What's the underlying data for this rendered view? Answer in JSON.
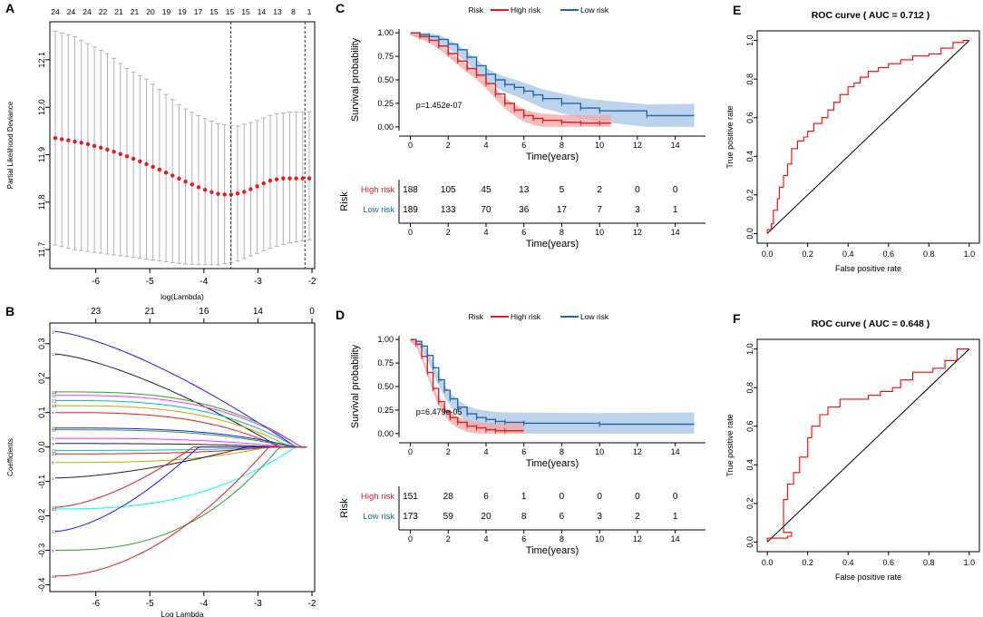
{
  "panels": {
    "A": {
      "letter": "A",
      "top_label": "",
      "xlabel": "log(Lambda)",
      "ylabel": "Partial Likelihood Deviance",
      "top_ticks": [
        "24",
        "24",
        "24",
        "22",
        "21",
        "21",
        "20",
        "19",
        "19",
        "17",
        "15",
        "15",
        "15",
        "14",
        "13",
        "8",
        "1"
      ],
      "xticks": [
        -6,
        -5,
        -4,
        -3,
        -2
      ],
      "yticks": [
        11.7,
        11.8,
        11.9,
        12.0,
        12.1
      ],
      "xlim": [
        -6.85,
        -1.95
      ],
      "ylim": [
        11.66,
        12.18
      ],
      "cv_mean": [
        11.935,
        11.93,
        11.925,
        11.918,
        11.91,
        11.9,
        11.89,
        11.878,
        11.866,
        11.853,
        11.84,
        11.828,
        11.818,
        11.815,
        11.82,
        11.832,
        11.845,
        11.85,
        11.85,
        11.85
      ],
      "cv_x_range": [
        -6.75,
        -2.05
      ],
      "upper": [
        12.16,
        12.15,
        12.13,
        12.11,
        12.08,
        12.06,
        12.03,
        12.0,
        11.98,
        11.965,
        11.96,
        11.97,
        11.985,
        11.99,
        11.99
      ],
      "lower": [
        11.71,
        11.7,
        11.695,
        11.69,
        11.685,
        11.68,
        11.675,
        11.67,
        11.668,
        11.668,
        11.675,
        11.69,
        11.705,
        11.715,
        11.72
      ],
      "lambda_min": -3.5,
      "lambda_1se": -2.13,
      "band_color": "#b3b3b3",
      "point_color": "#e41a1c"
    },
    "B": {
      "letter": "B",
      "xlabel": "Log Lambda",
      "ylabel": "Coefficients",
      "top_ticks": [
        "23",
        "21",
        "16",
        "14",
        "0"
      ],
      "top_tick_x": [
        -6,
        -5,
        -4,
        -3,
        -2
      ],
      "xticks": [
        -6,
        -5,
        -4,
        -3,
        -2
      ],
      "yticks": [
        -0.4,
        -0.3,
        -0.2,
        -0.1,
        0.0,
        0.1,
        0.2,
        0.3
      ],
      "xlim": [
        -6.85,
        -1.95
      ],
      "ylim": [
        -0.42,
        0.36
      ],
      "paths": [
        {
          "start": 0.335,
          "end_x": -2.3,
          "color": "#1a1aff",
          "shape": "drop_early"
        },
        {
          "start": 0.27,
          "end_x": -2.6,
          "color": "#222222",
          "shape": "drop_early"
        },
        {
          "start": 0.16,
          "end_x": -2.2,
          "color": "#2ca02c",
          "shape": "flat"
        },
        {
          "start": 0.15,
          "end_x": -2.2,
          "color": "#ff33ff",
          "shape": "flat"
        },
        {
          "start": 0.135,
          "end_x": -2.3,
          "color": "#00bfbf",
          "shape": "flat"
        },
        {
          "start": 0.12,
          "end_x": -2.4,
          "color": "#b3b300",
          "shape": "flat"
        },
        {
          "start": 0.1,
          "end_x": -2.6,
          "color": "#e41a1c",
          "shape": "flat"
        },
        {
          "start": 0.055,
          "end_x": -2.3,
          "color": "#1a1aff",
          "shape": "flat"
        },
        {
          "start": 0.05,
          "end_x": -2.4,
          "color": "#2ca02c",
          "shape": "flat"
        },
        {
          "start": 0.025,
          "end_x": -2.5,
          "color": "#ff33ff",
          "shape": "flat"
        },
        {
          "start": 0.01,
          "end_x": -2.6,
          "color": "#222222",
          "shape": "flat"
        },
        {
          "start": -0.01,
          "end_x": -2.6,
          "color": "#00bfbf",
          "shape": "flat"
        },
        {
          "start": -0.02,
          "end_x": -2.7,
          "color": "#e41a1c",
          "shape": "flat"
        },
        {
          "start": -0.045,
          "end_x": -2.8,
          "color": "#b3b300",
          "shape": "flat"
        },
        {
          "start": -0.09,
          "end_x": -3.2,
          "color": "#222222",
          "shape": "rise"
        },
        {
          "start": -0.175,
          "end_x": -4.2,
          "color": "#e41a1c",
          "shape": "rise"
        },
        {
          "start": -0.18,
          "end_x": -2.3,
          "color": "#00ffff",
          "shape": "rise_late"
        },
        {
          "start": -0.245,
          "end_x": -4.1,
          "color": "#1a1aff",
          "shape": "rise"
        },
        {
          "start": -0.3,
          "end_x": -2.6,
          "color": "#2ca02c",
          "shape": "rise_late"
        },
        {
          "start": -0.375,
          "end_x": -2.8,
          "color": "#e41a1c",
          "shape": "rise_mid"
        }
      ],
      "left_labels": [
        "17",
        "14",
        "29",
        "32",
        "23",
        "15",
        "4",
        "25",
        "10",
        "7",
        "3",
        "21",
        "20",
        "8",
        "1",
        "24",
        "22",
        "23",
        "6",
        "18"
      ]
    },
    "C": {
      "letter": "C",
      "legend_title": "Risk",
      "legend": [
        "High risk",
        "Low risk"
      ],
      "ylabel": "Survival probability",
      "xlabel": "Time(years)",
      "pvalue": "p=1.452e-07",
      "xticks": [
        0,
        2,
        4,
        6,
        8,
        10,
        12,
        14
      ],
      "yticks": [
        "0.00",
        "0.25",
        "0.50",
        "0.75",
        "1.00"
      ],
      "high_x": [
        0,
        0.5,
        1,
        1.5,
        2,
        2.5,
        3,
        3.5,
        4,
        4.5,
        5,
        5.5,
        6,
        6.5,
        7,
        8,
        9,
        10,
        10.6
      ],
      "high_y": [
        1.0,
        0.96,
        0.92,
        0.86,
        0.78,
        0.7,
        0.62,
        0.55,
        0.46,
        0.35,
        0.25,
        0.18,
        0.12,
        0.09,
        0.07,
        0.05,
        0.04,
        0.04,
        0.04
      ],
      "low_x": [
        0,
        0.5,
        1,
        1.5,
        2,
        2.5,
        3,
        3.5,
        4,
        4.5,
        5,
        5.5,
        6,
        6.5,
        7,
        8,
        9,
        10,
        12.5,
        15
      ],
      "low_y": [
        1.0,
        0.98,
        0.96,
        0.93,
        0.88,
        0.82,
        0.74,
        0.65,
        0.56,
        0.5,
        0.45,
        0.42,
        0.38,
        0.34,
        0.3,
        0.25,
        0.2,
        0.17,
        0.12,
        0.12
      ],
      "risk_title": "Risk",
      "risk_rows": [
        {
          "name": "High risk",
          "values": [
            "188",
            "105",
            "45",
            "13",
            "5",
            "2",
            "0",
            "0"
          ]
        },
        {
          "name": "Low risk",
          "values": [
            "189",
            "133",
            "70",
            "36",
            "17",
            "7",
            "3",
            "1"
          ]
        }
      ],
      "table_xlabel": "Time(years)"
    },
    "D": {
      "letter": "D",
      "legend_title": "Risk",
      "legend": [
        "High risk",
        "Low risk"
      ],
      "ylabel": "Survival probability",
      "xlabel": "Time(years)",
      "pvalue": "p=6.479e-05",
      "xticks": [
        0,
        2,
        4,
        6,
        8,
        10,
        12,
        14
      ],
      "yticks": [
        "0.00",
        "0.25",
        "0.50",
        "0.75",
        "1.00"
      ],
      "high_x": [
        0,
        0.3,
        0.6,
        0.9,
        1.2,
        1.5,
        1.8,
        2.1,
        2.5,
        3,
        3.5,
        4,
        4.5,
        5,
        6
      ],
      "high_y": [
        1.0,
        0.95,
        0.82,
        0.65,
        0.48,
        0.34,
        0.24,
        0.17,
        0.12,
        0.08,
        0.06,
        0.04,
        0.03,
        0.03,
        0.03
      ],
      "low_x": [
        0,
        0.3,
        0.6,
        0.9,
        1.2,
        1.5,
        1.8,
        2.1,
        2.5,
        3,
        3.5,
        4,
        4.5,
        5,
        6,
        10,
        15
      ],
      "low_y": [
        1.0,
        0.98,
        0.93,
        0.83,
        0.7,
        0.57,
        0.46,
        0.37,
        0.28,
        0.21,
        0.17,
        0.15,
        0.13,
        0.12,
        0.11,
        0.1,
        0.1
      ],
      "risk_title": "Risk",
      "risk_rows": [
        {
          "name": "High risk",
          "values": [
            "151",
            "28",
            "6",
            "1",
            "0",
            "0",
            "0",
            "0"
          ]
        },
        {
          "name": "Low risk",
          "values": [
            "173",
            "59",
            "20",
            "8",
            "6",
            "3",
            "2",
            "1"
          ]
        }
      ],
      "table_xlabel": "Time(years)"
    },
    "E": {
      "letter": "E",
      "title": "ROC curve ( AUC =  0.712 )",
      "xlabel": "False positive rate",
      "ylabel": "True positive rate",
      "xticks": [
        "0.0",
        "0.2",
        "0.4",
        "0.6",
        "0.8",
        "1.0"
      ],
      "yticks": [
        "0.0",
        "0.2",
        "0.4",
        "0.6",
        "0.8",
        "1.0"
      ],
      "fpr": [
        0,
        0.02,
        0.03,
        0.05,
        0.06,
        0.08,
        0.1,
        0.12,
        0.15,
        0.18,
        0.2,
        0.23,
        0.27,
        0.3,
        0.33,
        0.36,
        0.4,
        0.43,
        0.46,
        0.5,
        0.55,
        0.6,
        0.66,
        0.72,
        0.8,
        0.86,
        0.92,
        0.97,
        1.0
      ],
      "tpr": [
        0,
        0.02,
        0.05,
        0.12,
        0.18,
        0.24,
        0.3,
        0.36,
        0.44,
        0.48,
        0.5,
        0.53,
        0.57,
        0.6,
        0.64,
        0.68,
        0.72,
        0.76,
        0.78,
        0.81,
        0.84,
        0.86,
        0.88,
        0.9,
        0.92,
        0.93,
        0.96,
        0.99,
        1.0
      ]
    },
    "F": {
      "letter": "F",
      "title": "ROC curve ( AUC =  0.648 )",
      "xlabel": "False positive rate",
      "ylabel": "True positive rate",
      "xticks": [
        "0.0",
        "0.2",
        "0.4",
        "0.6",
        "0.8",
        "1.0"
      ],
      "yticks": [
        "0.0",
        "0.2",
        "0.4",
        "0.6",
        "0.8",
        "1.0"
      ],
      "fpr": [
        0,
        0.1,
        0.12,
        0.08,
        0.08,
        0.1,
        0.13,
        0.16,
        0.2,
        0.22,
        0.26,
        0.3,
        0.36,
        0.4,
        0.5,
        0.56,
        0.62,
        0.66,
        0.72,
        0.78,
        0.82,
        0.88,
        0.94,
        1.0
      ],
      "tpr": [
        0,
        0.02,
        0.03,
        0.05,
        0.1,
        0.22,
        0.3,
        0.36,
        0.44,
        0.54,
        0.6,
        0.66,
        0.7,
        0.74,
        0.74,
        0.76,
        0.78,
        0.8,
        0.84,
        0.88,
        0.88,
        0.9,
        0.94,
        1.0
      ]
    }
  },
  "colors": {
    "high_risk": "#e41a1c",
    "low_risk": "#2166ac",
    "high_band": "#f4a6a6",
    "low_band": "#a6c4e4",
    "roc_line": "#ff0000",
    "axis": "#000000"
  }
}
